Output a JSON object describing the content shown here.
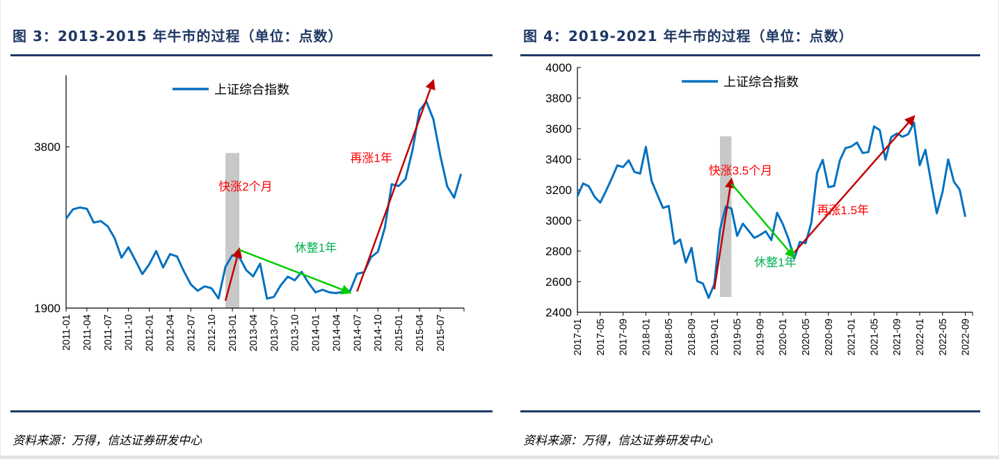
{
  "source_text": "资料来源：万得，信达证券研发中心",
  "chart_data": [
    {
      "type": "line",
      "title": "图 3：2013-2015 年牛市的过程（单位：点数）",
      "y_scale": "log",
      "ylim": [
        1900,
        5200
      ],
      "y_ticks": [
        1900,
        3800
      ],
      "y_tick_labels": [
        "1900",
        "3800"
      ],
      "x_tick_labels": [
        "2011-01",
        "2011-04",
        "2011-07",
        "2011-10",
        "2012-01",
        "2012-04",
        "2012-07",
        "2012-10",
        "2013-01",
        "2013-04",
        "2013-07",
        "2013-10",
        "2014-01",
        "2014-04",
        "2014-07",
        "2014-10",
        "2015-01",
        "2015-04",
        "2015-07"
      ],
      "legend": {
        "label": "上证综合指数",
        "position": "top-center"
      },
      "color": "#0070c0",
      "series": [
        {
          "name": "上证综合指数",
          "start": "2011-01",
          "values": [
            2790,
            2905,
            2928,
            2911,
            2743,
            2762,
            2701,
            2567,
            2359,
            2468,
            2333,
            2199,
            2292,
            2428,
            2262,
            2396,
            2372,
            2225,
            2103,
            2047,
            2086,
            2068,
            1980,
            2269,
            2385,
            2365,
            2236,
            2177,
            2300,
            1979,
            1994,
            2098,
            2175,
            2141,
            2220,
            2116,
            2033,
            2056,
            2033,
            2026,
            2039,
            2048,
            2202,
            2217,
            2364,
            2420,
            2683,
            3235,
            3210,
            3310,
            3748,
            4442,
            4612,
            4277,
            3664,
            3206,
            3053,
            3383
          ]
        }
      ],
      "shaded_band": {
        "from": "2012-12",
        "to": "2013-02",
        "low": 1900,
        "high": 3700,
        "color": "#c8c8c8"
      },
      "annotations": [
        {
          "text": "快涨2个月",
          "color": "#ff0000",
          "arrow_color": "#c00000",
          "from": [
            "2012-12",
            1960
          ],
          "to": [
            "2013-02",
            2450
          ],
          "label_at": [
            "2012-11",
            3150
          ]
        },
        {
          "text": "休整1年",
          "color": "#00b050",
          "arrow_color": "#00cc00",
          "from": [
            "2013-02",
            2440
          ],
          "to": [
            "2014-06",
            2030
          ],
          "label_at": [
            "2013-10",
            2420
          ]
        },
        {
          "text": "再涨1年",
          "color": "#ff0000",
          "arrow_color": "#c00000",
          "from": [
            "2014-07",
            2040
          ],
          "to": [
            "2015-06",
            5050
          ],
          "label_at": [
            "2014-06",
            3560
          ]
        }
      ]
    },
    {
      "type": "line",
      "title": "图 4：2019-2021 年牛市的过程（单位：点数）",
      "y_scale": "linear",
      "ylim": [
        2400,
        4000
      ],
      "y_ticks": [
        2400,
        2600,
        2800,
        3000,
        3200,
        3400,
        3600,
        3800,
        4000
      ],
      "y_tick_labels": [
        "2400",
        "2600",
        "2800",
        "3000",
        "3200",
        "3400",
        "3600",
        "3800",
        "4000"
      ],
      "x_tick_labels": [
        "2017-01",
        "2017-05",
        "2017-09",
        "2018-01",
        "2018-05",
        "2018-09",
        "2019-01",
        "2019-05",
        "2019-09",
        "2020-01",
        "2020-05",
        "2020-09",
        "2021-01",
        "2021-05",
        "2021-09",
        "2022-01",
        "2022-05",
        "2022-09"
      ],
      "legend": {
        "label": "上证综合指数",
        "position": "top-center"
      },
      "color": "#0070c0",
      "series": [
        {
          "name": "上证综合指数",
          "start": "2017-01",
          "values": [
            3159,
            3242,
            3223,
            3155,
            3117,
            3192,
            3273,
            3360,
            3349,
            3393,
            3317,
            3307,
            3481,
            3259,
            3169,
            3082,
            3095,
            2847,
            2876,
            2725,
            2821,
            2603,
            2588,
            2494,
            2585,
            2941,
            3091,
            3078,
            2899,
            2979,
            2933,
            2886,
            2905,
            2929,
            2872,
            3050,
            2977,
            2880,
            2750,
            2860,
            2852,
            2985,
            3310,
            3396,
            3218,
            3225,
            3392,
            3473,
            3483,
            3509,
            3441,
            3447,
            3615,
            3591,
            3397,
            3544,
            3568,
            3547,
            3564,
            3640,
            3361,
            3462,
            3252,
            3047,
            3186,
            3399,
            3253,
            3202,
            3024
          ]
        }
      ],
      "shaded_band": {
        "from": "2019-02",
        "to": "2019-04",
        "low": 2500,
        "high": 3550,
        "color": "#c8c8c8"
      },
      "annotations": [
        {
          "text": "快涨3.5个月",
          "color": "#ff0000",
          "arrow_color": "#c00000",
          "from": [
            "2019-01",
            2550
          ],
          "to": [
            "2019-04",
            3270
          ],
          "label_at": [
            "2018-12",
            3300
          ]
        },
        {
          "text": "休整1年",
          "color": "#00b050",
          "arrow_color": "#00cc00",
          "from": [
            "2019-04",
            3240
          ],
          "to": [
            "2020-03",
            2760
          ],
          "label_at": [
            "2019-08",
            2700
          ]
        },
        {
          "text": "再涨1.5年",
          "color": "#ff0000",
          "arrow_color": "#c00000",
          "from": [
            "2020-03",
            2790
          ],
          "to": [
            "2021-12",
            3680
          ],
          "label_at": [
            "2020-07",
            3040
          ]
        }
      ]
    }
  ]
}
